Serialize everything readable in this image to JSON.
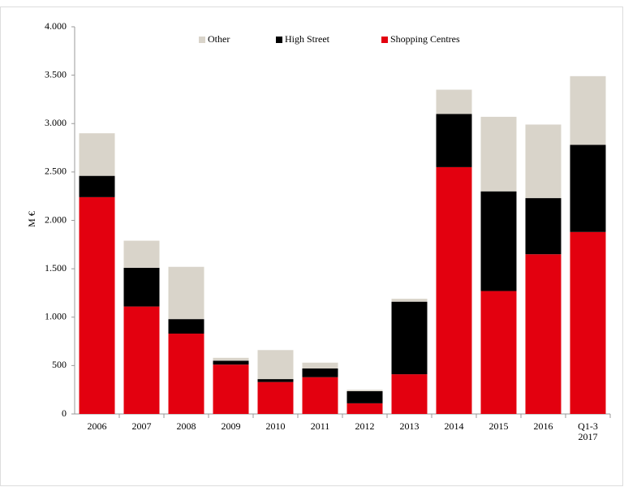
{
  "chart_data": {
    "type": "stacked_bar",
    "y_label": "M €",
    "categories": [
      "2006",
      "2007",
      "2008",
      "2009",
      "2010",
      "2011",
      "2012",
      "2013",
      "2014",
      "2015",
      "2016",
      "Q1-3 2017"
    ],
    "series": [
      {
        "name": "Shopping Centres",
        "color": "#e3000f",
        "values": [
          2240,
          1110,
          830,
          510,
          330,
          380,
          110,
          410,
          2550,
          1270,
          1650,
          1880
        ]
      },
      {
        "name": "High Street",
        "color": "#000000",
        "values": [
          220,
          400,
          150,
          40,
          30,
          90,
          125,
          750,
          550,
          1030,
          580,
          900
        ]
      },
      {
        "name": "Other",
        "color": "#d9d4ca",
        "values": [
          440,
          280,
          540,
          30,
          300,
          60,
          15,
          30,
          250,
          770,
          760,
          710
        ]
      }
    ],
    "ylim": [
      0,
      4000
    ],
    "yticks": [
      0,
      500,
      {
        "value": 1000,
        "label": "1.000"
      },
      {
        "value": 1500,
        "label": "1.500"
      },
      {
        "value": 2000,
        "label": "2.000"
      },
      {
        "value": 2500,
        "label": "2.500"
      },
      {
        "value": 3000,
        "label": "3.000"
      },
      {
        "value": 3500,
        "label": "3.500"
      },
      {
        "value": 4000,
        "label": "4.000"
      }
    ],
    "legend": "top",
    "grid": false
  }
}
